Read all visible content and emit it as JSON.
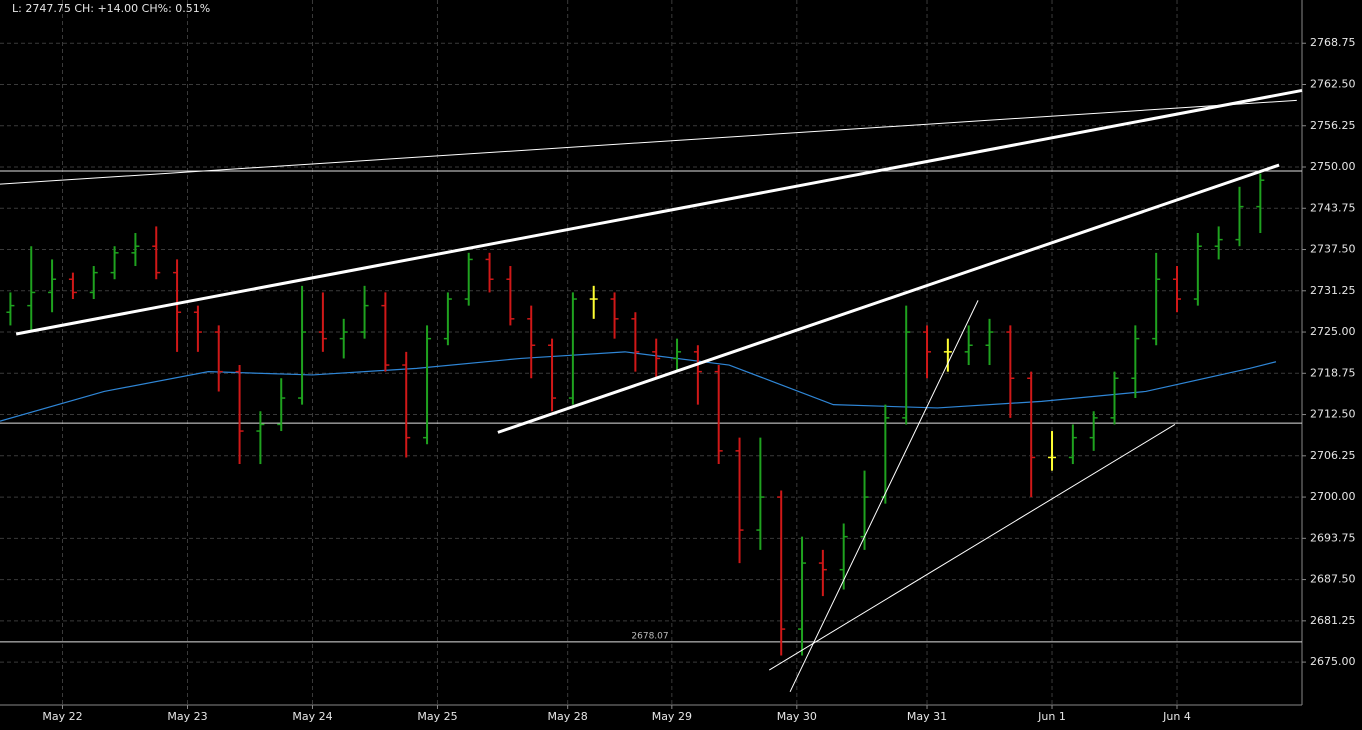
{
  "chart_data": {
    "type": "ohlc",
    "header": "L: 2747.75 CH: +14.00 CH%: 0.51%",
    "x": [
      2,
      6,
      10,
      14,
      18,
      22,
      26,
      30,
      34,
      38,
      42,
      46,
      50,
      54,
      58,
      62,
      66,
      70,
      74,
      78,
      82,
      86,
      90,
      94,
      98,
      102,
      106,
      110,
      114,
      118,
      122,
      126,
      130,
      134,
      138,
      142,
      146,
      150,
      154,
      158,
      162,
      166,
      170,
      174,
      178,
      182,
      186,
      190,
      194,
      198,
      202,
      206,
      210,
      214,
      218,
      222,
      226,
      230,
      234,
      238,
      242
    ],
    "open": [
      2728,
      2729,
      2731,
      2733,
      2731,
      2734,
      2737,
      2738,
      2734,
      2728,
      2725,
      2719,
      2710,
      2711,
      2715,
      2725,
      2724,
      2725,
      2729,
      2720,
      2709,
      2724,
      2730,
      2736,
      2733,
      2727,
      2723,
      2715,
      2730,
      2730,
      2727,
      2722,
      2721,
      2722,
      2719,
      2707,
      2695,
      2700,
      2680,
      2690,
      2689,
      2694,
      2700,
      2712,
      2725,
      2722,
      2722,
      2723,
      2725,
      2718,
      2706,
      2706,
      2709,
      2712,
      2718,
      2724,
      2733,
      2730,
      2738,
      2739,
      2744
    ],
    "high": [
      2731,
      2738,
      2736,
      2734,
      2735,
      2738,
      2740,
      2741,
      2736,
      2729,
      2726,
      2720,
      2713,
      2718,
      2732,
      2731,
      2727,
      2732,
      2731,
      2722,
      2726,
      2731,
      2737,
      2737,
      2735,
      2729,
      2724,
      2731,
      2732,
      2731,
      2728,
      2724,
      2724,
      2723,
      2720,
      2709,
      2709,
      2701,
      2694,
      2692,
      2696,
      2704,
      2714,
      2729,
      2726,
      2724,
      2726,
      2727,
      2726,
      2719,
      2710,
      2711,
      2713,
      2719,
      2726,
      2737,
      2735,
      2740,
      2741,
      2747,
      2749
    ],
    "low": [
      2726,
      2725,
      2728,
      2730,
      2730,
      2733,
      2735,
      2733,
      2722,
      2722,
      2716,
      2705,
      2705,
      2710,
      2714,
      2722,
      2721,
      2724,
      2719,
      2706,
      2708,
      2723,
      2729,
      2731,
      2726,
      2718,
      2713,
      2714,
      2727,
      2724,
      2719,
      2718,
      2719,
      2714,
      2705,
      2690,
      2692,
      2676,
      2676,
      2685,
      2686,
      2692,
      2699,
      2711,
      2718,
      2719,
      2720,
      2720,
      2712,
      2700,
      2704,
      2705,
      2707,
      2711,
      2715,
      2723,
      2728,
      2729,
      2736,
      2738,
      2740
    ],
    "close": [
      2729,
      2731,
      2733,
      2731,
      2734,
      2737,
      2738,
      2734,
      2728,
      2725,
      2719,
      2710,
      2711,
      2715,
      2725,
      2724,
      2725,
      2729,
      2720,
      2709,
      2724,
      2730,
      2736,
      2733,
      2727,
      2723,
      2715,
      2730,
      2730,
      2727,
      2722,
      2721,
      2722,
      2719,
      2707,
      2695,
      2700,
      2680,
      2690,
      2689,
      2694,
      2700,
      2712,
      2725,
      2722,
      2722,
      2723,
      2725,
      2718,
      2706,
      2706,
      2709,
      2712,
      2718,
      2724,
      2733,
      2730,
      2738,
      2739,
      2744,
      2748
    ],
    "colors": {
      "up": "#1fa21f",
      "down": "#d01818",
      "flat": "#ffff33"
    },
    "ma": {
      "color": "#2f86d6",
      "x": [
        0,
        20,
        40,
        60,
        80,
        100,
        120,
        140,
        160,
        180,
        200,
        220,
        240,
        245
      ],
      "values": [
        2711.5,
        2716,
        2719,
        2718.5,
        2719.5,
        2721,
        2722,
        2720,
        2714,
        2713.5,
        2714.5,
        2716,
        2719.5,
        2720.5
      ]
    },
    "hlines": [
      {
        "value": 2749.4
      },
      {
        "value": 2711.2
      },
      {
        "value": 2678.07,
        "label": "2678.07"
      }
    ],
    "trendlines": [
      {
        "x": [
          0,
          249
        ],
        "y": [
          2747.4,
          2760.1
        ],
        "weight": "thin"
      },
      {
        "x": [
          3.1,
          250
        ],
        "y": [
          2724.7,
          2761.6
        ],
        "weight": "thick"
      },
      {
        "x": [
          95.6,
          245.6
        ],
        "y": [
          2709.8,
          2750.3
        ],
        "weight": "thick"
      },
      {
        "x": [
          151.7,
          187.8
        ],
        "y": [
          2670.5,
          2729.8
        ],
        "weight": "thin"
      },
      {
        "x": [
          147.7,
          225.6
        ],
        "y": [
          2673.8,
          2711.0
        ],
        "weight": "thin"
      }
    ],
    "xlim": [
      0,
      250
    ],
    "ylim": [
      2668.5,
      2775.3
    ],
    "xticks": [
      {
        "value": 12,
        "label": "May 22"
      },
      {
        "value": 36,
        "label": "May 23"
      },
      {
        "value": 60,
        "label": "May 24"
      },
      {
        "value": 84,
        "label": "May 25"
      },
      {
        "value": 109,
        "label": "May 28"
      },
      {
        "value": 129,
        "label": "May 29"
      },
      {
        "value": 153,
        "label": "May 30"
      },
      {
        "value": 178,
        "label": "May 31"
      },
      {
        "value": 202,
        "label": "Jun 1"
      },
      {
        "value": 226,
        "label": "Jun 4"
      }
    ],
    "yticks": [
      {
        "value": 2675,
        "label": "2675.00"
      },
      {
        "value": 2681.25,
        "label": "2681.25"
      },
      {
        "value": 2687.5,
        "label": "2687.50"
      },
      {
        "value": 2693.75,
        "label": "2693.75"
      },
      {
        "value": 2700,
        "label": "2700.00"
      },
      {
        "value": 2706.25,
        "label": "2706.25"
      },
      {
        "value": 2712.5,
        "label": "2712.50"
      },
      {
        "value": 2718.75,
        "label": "2718.75"
      },
      {
        "value": 2725,
        "label": "2725.00"
      },
      {
        "value": 2731.25,
        "label": "2731.25"
      },
      {
        "value": 2737.5,
        "label": "2737.50"
      },
      {
        "value": 2743.75,
        "label": "2743.75"
      },
      {
        "value": 2750,
        "label": "2750.00"
      },
      {
        "value": 2756.25,
        "label": "2756.25"
      },
      {
        "value": 2762.5,
        "label": "2762.50"
      },
      {
        "value": 2768.75,
        "label": "2768.75"
      }
    ],
    "grid": true
  }
}
